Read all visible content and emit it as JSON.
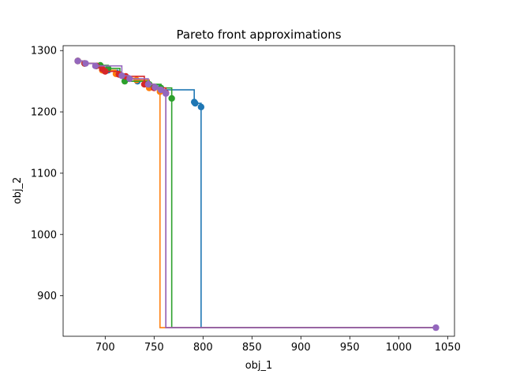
{
  "chart_data": {
    "type": "line",
    "title": "Pareto front approximations",
    "xlabel": "obj_1",
    "ylabel": "obj_2",
    "xlim": [
      657,
      1057
    ],
    "ylim": [
      834,
      1308
    ],
    "xticks": [
      700,
      750,
      800,
      850,
      900,
      950,
      1000,
      1050
    ],
    "yticks": [
      900,
      1000,
      1100,
      1200,
      1300
    ],
    "grid": false,
    "legend": "none",
    "step_style": "post",
    "reference_point": [
      1038,
      848
    ],
    "series": [
      {
        "color": "#1f77b4",
        "x": [
          672,
          679,
          691,
          703,
          713,
          721,
          733,
          745,
          757,
          791,
          792,
          798
        ],
        "y": [
          1283,
          1279,
          1275,
          1268,
          1262,
          1255,
          1250,
          1244,
          1236,
          1216,
          1214,
          1208
        ]
      },
      {
        "color": "#ff7f0e",
        "x": [
          672,
          679,
          691,
          697,
          711,
          721,
          732,
          745,
          756
        ],
        "y": [
          1283,
          1279,
          1275,
          1268,
          1262,
          1255,
          1252,
          1239,
          1233
        ]
      },
      {
        "color": "#2ca02c",
        "x": [
          672,
          679,
          691,
          695,
          703,
          715,
          720,
          745,
          757,
          768
        ],
        "y": [
          1283,
          1279,
          1275,
          1276,
          1271,
          1261,
          1250,
          1245,
          1239,
          1222
        ]
      },
      {
        "color": "#d62728",
        "x": [
          672,
          679,
          691,
          697,
          700,
          714,
          721,
          740,
          750,
          762
        ],
        "y": [
          1283,
          1279,
          1275,
          1270,
          1266,
          1261,
          1258,
          1245,
          1239,
          1231
        ]
      },
      {
        "color": "#9467bd",
        "x": [
          672,
          680,
          690,
          717,
          725,
          744,
          751,
          757,
          762
        ],
        "y": [
          1283,
          1279,
          1275,
          1259,
          1254,
          1245,
          1240,
          1236,
          1230
        ]
      }
    ]
  }
}
